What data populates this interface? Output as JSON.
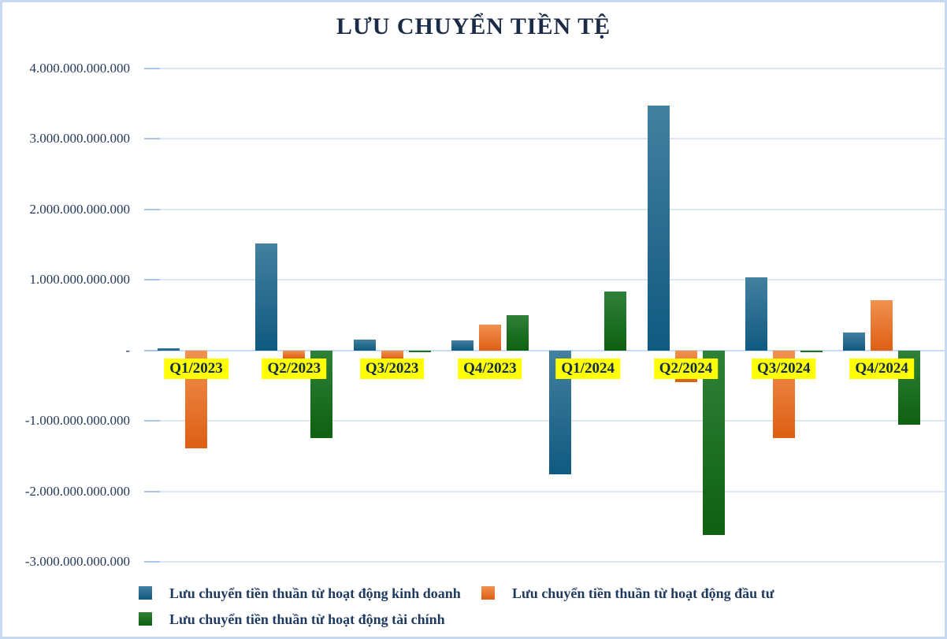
{
  "chart_data": {
    "type": "bar",
    "title": "LƯU CHUYỂN TIỀN TỆ",
    "xlabel": "",
    "ylabel": "",
    "grid": true,
    "legend_position": "bottom",
    "ylim": [
      -3000000000000,
      4000000000000
    ],
    "category_label_bg": "#ffff00",
    "categories": [
      "Q1/2023",
      "Q2/2023",
      "Q3/2023",
      "Q4/2023",
      "Q1/2024",
      "Q2/2024",
      "Q3/2024",
      "Q4/2024"
    ],
    "y_ticks": [
      {
        "value": 4000000000000,
        "label": "4.000.000.000.000"
      },
      {
        "value": 3000000000000,
        "label": "3.000.000.000.000"
      },
      {
        "value": 2000000000000,
        "label": "2.000.000.000.000"
      },
      {
        "value": 1000000000000,
        "label": "1.000.000.000.000"
      },
      {
        "value": 0,
        "label": "-"
      },
      {
        "value": -1000000000000,
        "label": "-1.000.000.000.000"
      },
      {
        "value": -2000000000000,
        "label": "-2.000.000.000.000"
      },
      {
        "value": -3000000000000,
        "label": "-3.000.000.000.000"
      }
    ],
    "series": [
      {
        "key": "operating",
        "name": "Lưu chuyển tiền thuần từ hoạt động kinh doanh",
        "color": "#1e6484",
        "color_light": "#44809f",
        "color_dark": "#0f5a80",
        "values": [
          30000000000,
          1520000000000,
          150000000000,
          140000000000,
          -1760000000000,
          3470000000000,
          1040000000000,
          250000000000
        ]
      },
      {
        "key": "investing",
        "name": "Lưu chuyển tiền thuần từ hoạt động đầu tư",
        "color": "#ed7225",
        "color_light": "#f1914f",
        "color_dark": "#dd5f13",
        "values": [
          -1390000000000,
          -110000000000,
          -130000000000,
          370000000000,
          0,
          -450000000000,
          -1240000000000,
          710000000000
        ]
      },
      {
        "key": "financing",
        "name": "Lưu chuyển tiền thuần từ hoạt động tài chính",
        "color": "#1e7a1f",
        "color_light": "#2f8138",
        "color_dark": "#0d610f",
        "values": [
          0,
          -1240000000000,
          -20000000000,
          500000000000,
          830000000000,
          -2620000000000,
          -10000000000,
          -1060000000000
        ]
      }
    ]
  }
}
